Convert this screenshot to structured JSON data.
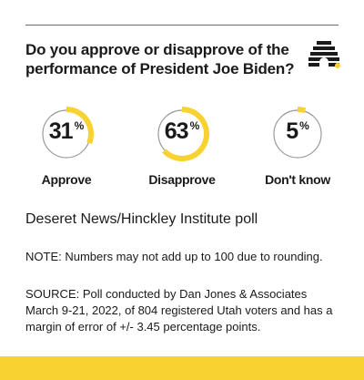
{
  "question": "Do you approve or disapprove of the performance of President Joe Biden?",
  "logo_icon": "beehive-icon",
  "colors": {
    "accent": "#f7d230",
    "ring": "#9a9a9a",
    "text": "#1a1a1a"
  },
  "chart_data": {
    "type": "pie",
    "categories": [
      "Approve",
      "Disapprove",
      "Don't know"
    ],
    "values": [
      31,
      63,
      5
    ],
    "unit": "%"
  },
  "poll_name": "Deseret News/Hinckley Institute poll",
  "note": "NOTE: Numbers may not add up to 100 due to rounding.",
  "source": "SOURCE: Poll conducted by Dan Jones & Associates March 9-21, 2022, of 804 registered Utah voters and has a margin of error of +/- 3.45 percentage points."
}
